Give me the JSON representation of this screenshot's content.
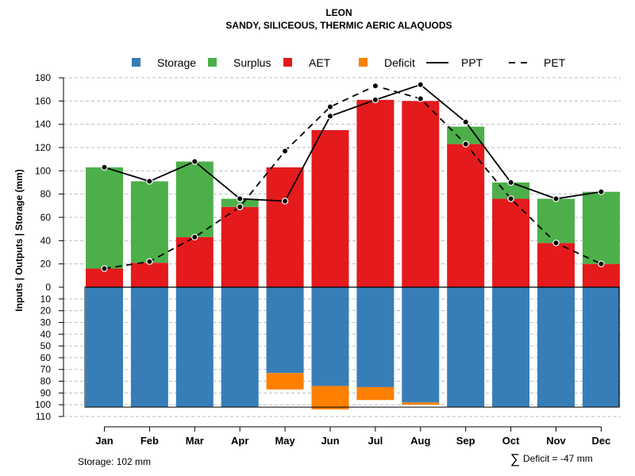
{
  "chart_data": {
    "type": "bar",
    "title": "LEON",
    "subtitle": "SANDY, SILICEOUS, THERMIC AERIC ALAQUODS",
    "ylabel": "Inputs | Outputs | Storage    (mm)",
    "categories": [
      "Jan",
      "Feb",
      "Mar",
      "Apr",
      "May",
      "Jun",
      "Jul",
      "Aug",
      "Sep",
      "Oct",
      "Nov",
      "Dec"
    ],
    "upper_ylim": [
      0,
      180
    ],
    "upper_ticks": [
      0,
      20,
      40,
      60,
      80,
      100,
      120,
      140,
      160,
      180
    ],
    "lower_ylim": [
      0,
      110
    ],
    "lower_ticks": [
      0,
      10,
      20,
      30,
      40,
      50,
      60,
      70,
      80,
      90,
      100,
      110
    ],
    "grid": true,
    "legend_position": "top",
    "legend": [
      {
        "key": "storage",
        "label": "Storage",
        "kind": "box"
      },
      {
        "key": "surplus",
        "label": "Surplus",
        "kind": "box"
      },
      {
        "key": "aet",
        "label": "AET",
        "kind": "box"
      },
      {
        "key": "deficit",
        "label": "Deficit",
        "kind": "box"
      },
      {
        "key": "ppt",
        "label": "PPT",
        "kind": "solid"
      },
      {
        "key": "pet",
        "label": "PET",
        "kind": "dashed"
      }
    ],
    "colors": {
      "storage": "#377eb8",
      "surplus": "#4daf4a",
      "aet": "#e41a1c",
      "deficit": "#ff7f00",
      "grid": "#bbbbbb",
      "line": "#000000"
    },
    "series": [
      {
        "name": "AET",
        "key": "aet",
        "values": [
          16,
          21,
          43,
          69,
          103,
          135,
          161,
          160,
          123,
          76,
          38,
          20
        ]
      },
      {
        "name": "Surplus",
        "key": "surplus",
        "values": [
          87,
          70,
          65,
          7,
          0,
          0,
          0,
          0,
          15,
          14,
          38,
          62
        ]
      },
      {
        "name": "PPT",
        "key": "ppt",
        "values": [
          103,
          91,
          108,
          76,
          74,
          147,
          161,
          174,
          142,
          90,
          76,
          82
        ]
      },
      {
        "name": "PET",
        "key": "pet",
        "values": [
          16,
          22,
          43,
          69,
          117,
          155,
          173,
          162,
          123,
          76,
          38,
          20
        ]
      },
      {
        "name": "Storage",
        "key": "storage",
        "values": [
          102,
          102,
          102,
          102,
          73,
          84,
          85,
          98,
          102,
          102,
          102,
          102
        ]
      },
      {
        "name": "Deficit",
        "key": "deficit",
        "values": [
          0,
          0,
          0,
          0,
          14,
          20,
          11,
          2,
          0,
          0,
          0,
          0
        ]
      }
    ],
    "max_storage": 102,
    "annotations": {
      "storage": "Storage: 102 mm",
      "deficit_symbol": "∑",
      "deficit": "Deficit = -47 mm"
    }
  }
}
